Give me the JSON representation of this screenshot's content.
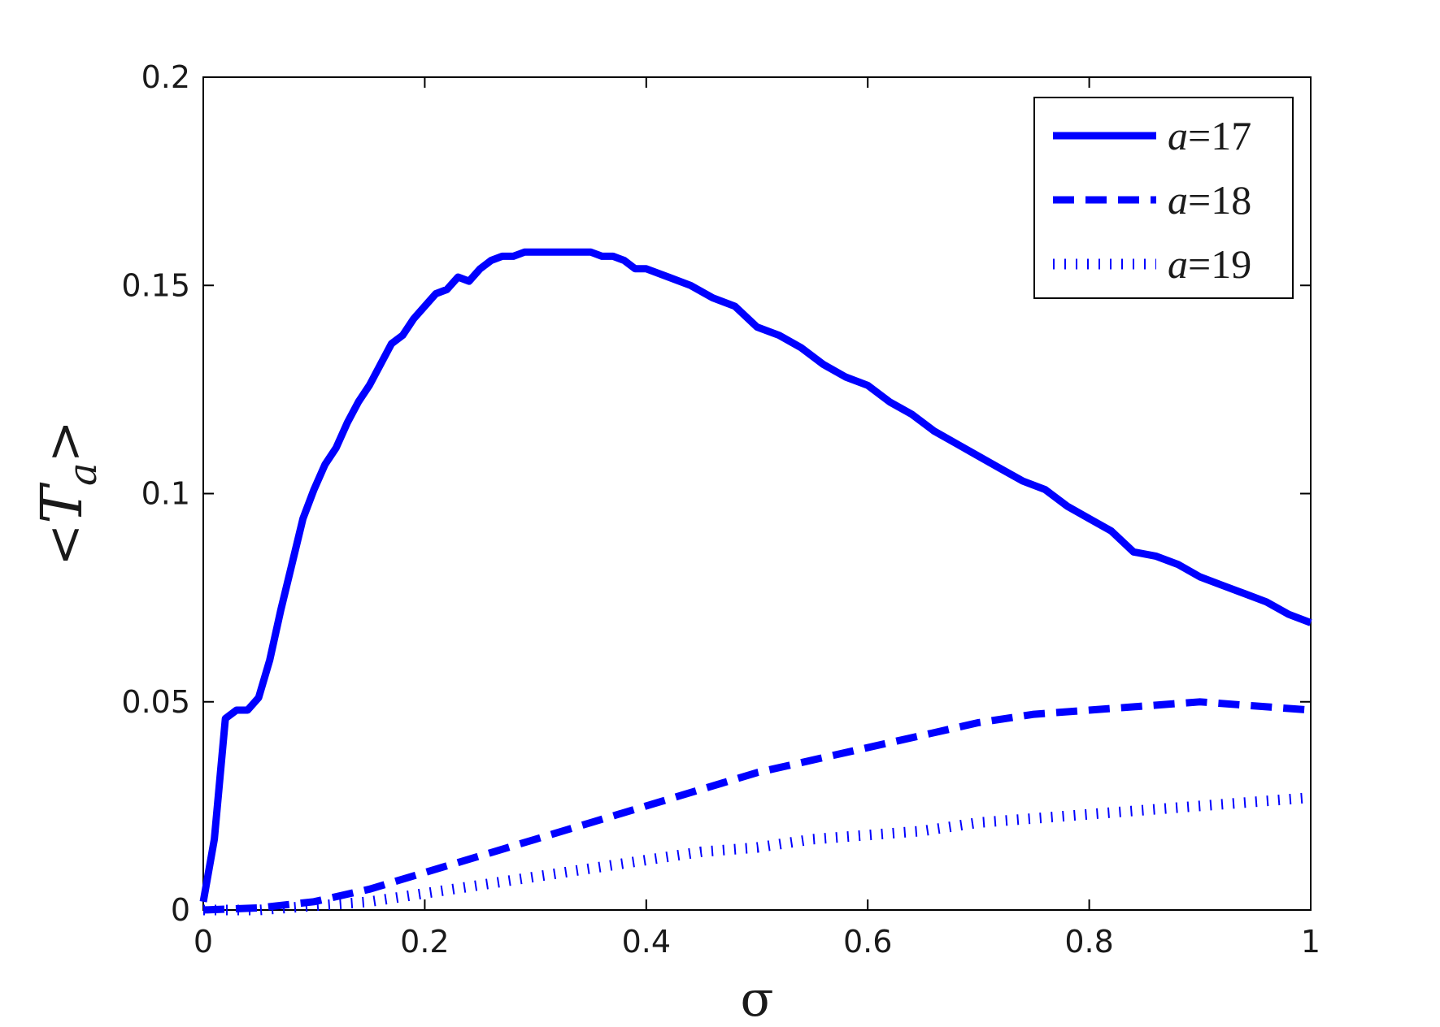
{
  "chart_data": {
    "type": "line",
    "xlabel": "σ",
    "ylabel": "<T_a>",
    "ylabel_parts": {
      "left": "<",
      "symbol": "T",
      "subscript": "a",
      "right": ">"
    },
    "xlim": [
      0,
      1
    ],
    "ylim": [
      0,
      0.2
    ],
    "xticks": [
      0,
      0.2,
      0.4,
      0.6,
      0.8,
      1
    ],
    "xtick_labels": [
      "0",
      "0.2",
      "0.4",
      "0.6",
      "0.8",
      "1"
    ],
    "yticks": [
      0,
      0.05,
      0.1,
      0.15,
      0.2
    ],
    "ytick_labels": [
      "0",
      "0.05",
      "0.1",
      "0.15",
      "0.2"
    ],
    "grid": false,
    "legend_position": "top-right",
    "series": [
      {
        "name": "a=17",
        "name_parts": {
          "var": "a",
          "rest": "=17"
        },
        "color": "#0000ff",
        "style": "solid",
        "x": [
          0,
          0.01,
          0.02,
          0.03,
          0.04,
          0.05,
          0.06,
          0.07,
          0.08,
          0.09,
          0.1,
          0.11,
          0.12,
          0.13,
          0.14,
          0.15,
          0.16,
          0.17,
          0.18,
          0.19,
          0.2,
          0.21,
          0.22,
          0.23,
          0.24,
          0.25,
          0.26,
          0.27,
          0.28,
          0.29,
          0.3,
          0.31,
          0.32,
          0.33,
          0.34,
          0.35,
          0.36,
          0.37,
          0.38,
          0.39,
          0.4,
          0.42,
          0.44,
          0.46,
          0.48,
          0.5,
          0.52,
          0.54,
          0.56,
          0.58,
          0.6,
          0.62,
          0.64,
          0.66,
          0.68,
          0.7,
          0.72,
          0.74,
          0.76,
          0.78,
          0.8,
          0.82,
          0.84,
          0.86,
          0.88,
          0.9,
          0.92,
          0.94,
          0.96,
          0.98,
          1.0
        ],
        "values": [
          0.002,
          0.017,
          0.046,
          0.048,
          0.048,
          0.051,
          0.06,
          0.072,
          0.083,
          0.094,
          0.101,
          0.107,
          0.111,
          0.117,
          0.122,
          0.126,
          0.131,
          0.136,
          0.138,
          0.142,
          0.145,
          0.148,
          0.149,
          0.152,
          0.151,
          0.154,
          0.156,
          0.157,
          0.157,
          0.158,
          0.158,
          0.158,
          0.158,
          0.158,
          0.158,
          0.158,
          0.157,
          0.157,
          0.156,
          0.154,
          0.154,
          0.152,
          0.15,
          0.147,
          0.145,
          0.14,
          0.138,
          0.135,
          0.131,
          0.128,
          0.126,
          0.122,
          0.119,
          0.115,
          0.112,
          0.109,
          0.106,
          0.103,
          0.101,
          0.097,
          0.094,
          0.091,
          0.086,
          0.085,
          0.083,
          0.08,
          0.078,
          0.076,
          0.074,
          0.071,
          0.069
        ]
      },
      {
        "name": "a=18",
        "name_parts": {
          "var": "a",
          "rest": "=18"
        },
        "color": "#0000ff",
        "style": "dashed",
        "x": [
          0,
          0.05,
          0.1,
          0.15,
          0.2,
          0.25,
          0.3,
          0.35,
          0.4,
          0.45,
          0.5,
          0.55,
          0.6,
          0.65,
          0.7,
          0.75,
          0.8,
          0.85,
          0.9,
          0.95,
          1.0
        ],
        "values": [
          0,
          0.0005,
          0.002,
          0.005,
          0.009,
          0.013,
          0.017,
          0.021,
          0.025,
          0.029,
          0.033,
          0.036,
          0.039,
          0.042,
          0.045,
          0.047,
          0.048,
          0.049,
          0.05,
          0.049,
          0.048
        ]
      },
      {
        "name": "a=19",
        "name_parts": {
          "var": "a",
          "rest": "=19"
        },
        "color": "#0000ff",
        "style": "dotted",
        "x": [
          0,
          0.05,
          0.1,
          0.15,
          0.2,
          0.25,
          0.3,
          0.35,
          0.4,
          0.45,
          0.5,
          0.55,
          0.6,
          0.65,
          0.7,
          0.75,
          0.8,
          0.85,
          0.9,
          0.95,
          1.0
        ],
        "values": [
          0,
          0,
          0.001,
          0.002,
          0.004,
          0.006,
          0.008,
          0.01,
          0.012,
          0.014,
          0.015,
          0.017,
          0.018,
          0.019,
          0.021,
          0.022,
          0.023,
          0.024,
          0.025,
          0.026,
          0.027
        ]
      }
    ]
  }
}
